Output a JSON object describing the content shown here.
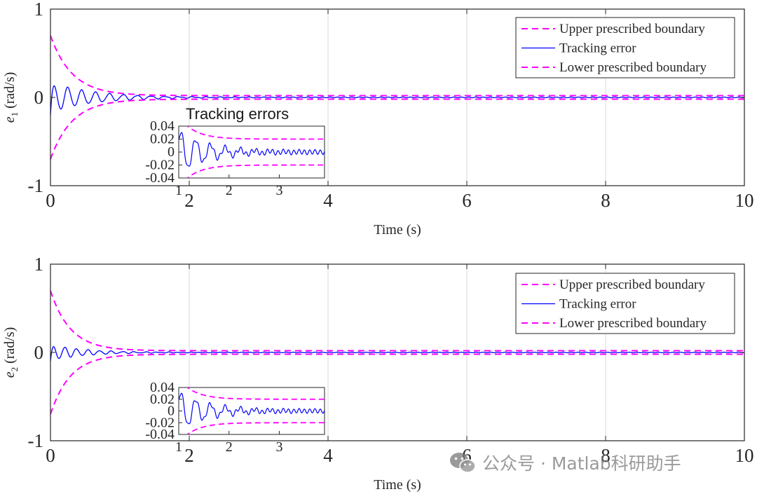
{
  "colors": {
    "bound": "#ff00ff",
    "error": "#0000ff",
    "axis": "#262626",
    "grid": "#d9d9d9"
  },
  "watermark": {
    "text": "公众号 · Matlab科研助手",
    "icon": "wechat-icon"
  },
  "chart_data": [
    {
      "type": "line",
      "id": "e1",
      "ylabel_var": "e",
      "ylabel_sub": "1",
      "ylabel_unit": "(rad/s)",
      "xlabel": "Time (s)",
      "xlim": [
        0,
        10
      ],
      "ylim": [
        -1,
        1
      ],
      "xticks": [
        "0",
        "2",
        "4",
        "6",
        "8",
        "10"
      ],
      "yticks": [
        "-1",
        "0",
        "1"
      ],
      "grid": "x",
      "legend": {
        "position": "top-right",
        "entries": [
          "Upper prescribed boundary",
          "Tracking error",
          "Lower prescribed boundary"
        ]
      },
      "series": [
        {
          "name": "Upper prescribed boundary",
          "style": "dashed",
          "rho0": 0.7,
          "rhoInf": 0.02,
          "decay": 3.2
        },
        {
          "name": "Tracking error",
          "style": "solid",
          "initial": -0.2,
          "amp": 0.17,
          "decay": 1.6,
          "freq": 5.0,
          "ripple": 0.004
        },
        {
          "name": "Lower prescribed boundary",
          "style": "dashed",
          "rho0": -0.7,
          "rhoInf": -0.02,
          "decay": 3.2
        }
      ],
      "inset": {
        "title": "Tracking errors",
        "xlim": [
          1,
          3.9
        ],
        "ylim": [
          -0.04,
          0.04
        ],
        "xticks": [
          "1",
          "2",
          "3"
        ],
        "yticks": [
          "0.04",
          "0.02",
          "0",
          "-0.02",
          "-0.04"
        ]
      }
    },
    {
      "type": "line",
      "id": "e2",
      "ylabel_var": "e",
      "ylabel_sub": "2",
      "ylabel_unit": "(rad/s)",
      "xlabel": "Time (s)",
      "xlim": [
        0,
        10
      ],
      "ylim": [
        -1,
        1
      ],
      "xticks": [
        "0",
        "2",
        "4",
        "6",
        "8",
        "10"
      ],
      "yticks": [
        "-1",
        "0",
        "1"
      ],
      "grid": "x",
      "legend": {
        "position": "top-right",
        "entries": [
          "Upper prescribed boundary",
          "Tracking error",
          "Lower prescribed boundary"
        ]
      },
      "series": [
        {
          "name": "Upper prescribed boundary",
          "style": "dashed",
          "rho0": 0.7,
          "rhoInf": 0.02,
          "decay": 3.5
        },
        {
          "name": "Tracking error",
          "style": "solid",
          "initial": -0.1,
          "amp": 0.09,
          "decay": 2.0,
          "freq": 6.0,
          "ripple": 0.003
        },
        {
          "name": "Lower prescribed boundary",
          "style": "dashed",
          "rho0": -0.7,
          "rhoInf": -0.02,
          "decay": 3.5
        }
      ],
      "inset": {
        "title": "",
        "xlim": [
          1,
          3.9
        ],
        "ylim": [
          -0.04,
          0.04
        ],
        "xticks": [
          "1",
          "2",
          "3"
        ],
        "yticks": [
          "0.04",
          "0.02",
          "0",
          "-0.02",
          "-0.04"
        ]
      }
    }
  ]
}
